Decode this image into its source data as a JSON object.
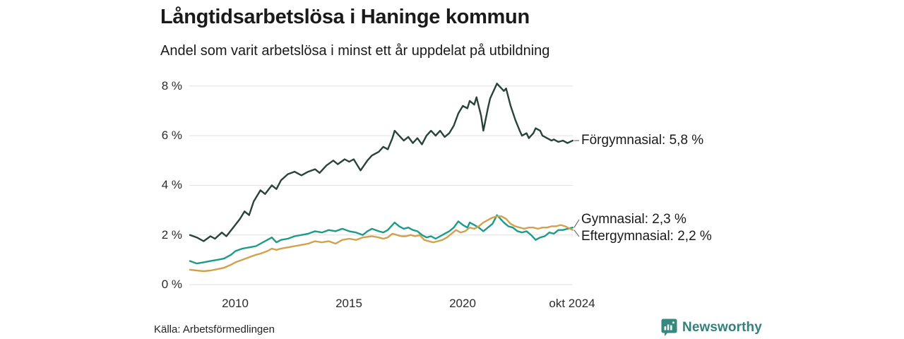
{
  "header": {
    "title": "Långtidsarbetslösa i Haninge kommun",
    "subtitle": "Andel som varit arbetslösa i minst ett år uppdelat på utbildning"
  },
  "footer": {
    "source": "Källa: Arbetsförmedlingen",
    "brand": "Newsworthy",
    "brand_icon": "newsworthy-bar-chart-bubble-icon",
    "brand_color": "#35817a"
  },
  "theme": {
    "background": "#ffffff",
    "grid_color": "#e0e0e0",
    "text_color": "#1a1a1a",
    "leader_line_color": "#555555"
  },
  "chart_data": {
    "type": "line",
    "title": "Långtidsarbetslösa i Haninge kommun",
    "subtitle": "Andel som varit arbetslösa i minst ett år uppdelat på utbildning",
    "unit": "%",
    "grid": true,
    "legend_position": "right-end-labels",
    "x_axis": {
      "range_years": [
        2008.0,
        2024.83
      ],
      "ticks": [
        {
          "year": 2010,
          "label": "2010"
        },
        {
          "year": 2015,
          "label": "2015"
        },
        {
          "year": 2020,
          "label": "2020"
        },
        {
          "year": 2024.79,
          "label": "okt 2024"
        }
      ]
    },
    "y_axis": {
      "range": [
        0,
        8.5
      ],
      "ticks": [
        {
          "value": 0,
          "label": "0 %"
        },
        {
          "value": 2,
          "label": "2 %"
        },
        {
          "value": 4,
          "label": "4 %"
        },
        {
          "value": 6,
          "label": "6 %"
        },
        {
          "value": 8,
          "label": "8 %"
        }
      ]
    },
    "series": [
      {
        "name": "Förgymnasial",
        "label": "Förgymnasial: 5,8 %",
        "final_value": "5,8 %",
        "color": "#28423c",
        "points": [
          [
            2008.0,
            2.0
          ],
          [
            2008.3,
            1.9
          ],
          [
            2008.6,
            1.75
          ],
          [
            2008.9,
            1.95
          ],
          [
            2009.1,
            1.85
          ],
          [
            2009.4,
            2.1
          ],
          [
            2009.6,
            1.95
          ],
          [
            2009.9,
            2.3
          ],
          [
            2010.2,
            2.65
          ],
          [
            2010.4,
            2.95
          ],
          [
            2010.6,
            2.8
          ],
          [
            2010.8,
            3.35
          ],
          [
            2011.1,
            3.8
          ],
          [
            2011.3,
            3.65
          ],
          [
            2011.6,
            4.0
          ],
          [
            2011.8,
            3.85
          ],
          [
            2012.0,
            4.2
          ],
          [
            2012.3,
            4.45
          ],
          [
            2012.6,
            4.55
          ],
          [
            2012.9,
            4.4
          ],
          [
            2013.2,
            4.55
          ],
          [
            2013.5,
            4.65
          ],
          [
            2013.7,
            4.5
          ],
          [
            2014.0,
            4.8
          ],
          [
            2014.3,
            5.0
          ],
          [
            2014.5,
            4.85
          ],
          [
            2014.8,
            5.05
          ],
          [
            2015.0,
            4.95
          ],
          [
            2015.2,
            5.05
          ],
          [
            2015.5,
            4.6
          ],
          [
            2015.8,
            5.0
          ],
          [
            2016.0,
            5.2
          ],
          [
            2016.3,
            5.35
          ],
          [
            2016.5,
            5.55
          ],
          [
            2016.7,
            5.45
          ],
          [
            2016.9,
            5.9
          ],
          [
            2017.0,
            6.2
          ],
          [
            2017.2,
            6.0
          ],
          [
            2017.4,
            5.8
          ],
          [
            2017.6,
            5.95
          ],
          [
            2017.8,
            5.7
          ],
          [
            2018.0,
            5.9
          ],
          [
            2018.2,
            5.65
          ],
          [
            2018.4,
            6.0
          ],
          [
            2018.6,
            6.2
          ],
          [
            2018.8,
            6.0
          ],
          [
            2019.0,
            6.2
          ],
          [
            2019.2,
            5.95
          ],
          [
            2019.4,
            6.1
          ],
          [
            2019.6,
            6.4
          ],
          [
            2019.8,
            6.9
          ],
          [
            2020.0,
            7.2
          ],
          [
            2020.2,
            7.1
          ],
          [
            2020.3,
            7.4
          ],
          [
            2020.5,
            7.25
          ],
          [
            2020.6,
            7.55
          ],
          [
            2020.8,
            6.8
          ],
          [
            2020.9,
            6.2
          ],
          [
            2021.1,
            7.1
          ],
          [
            2021.2,
            7.5
          ],
          [
            2021.4,
            7.9
          ],
          [
            2021.5,
            8.1
          ],
          [
            2021.6,
            8.0
          ],
          [
            2021.8,
            7.8
          ],
          [
            2021.9,
            7.9
          ],
          [
            2022.1,
            7.2
          ],
          [
            2022.3,
            6.65
          ],
          [
            2022.5,
            6.2
          ],
          [
            2022.6,
            6.0
          ],
          [
            2022.8,
            6.1
          ],
          [
            2022.9,
            5.9
          ],
          [
            2023.1,
            6.1
          ],
          [
            2023.2,
            6.3
          ],
          [
            2023.4,
            6.2
          ],
          [
            2023.5,
            6.0
          ],
          [
            2023.7,
            5.9
          ],
          [
            2023.9,
            5.8
          ],
          [
            2024.0,
            5.85
          ],
          [
            2024.2,
            5.75
          ],
          [
            2024.4,
            5.8
          ],
          [
            2024.6,
            5.7
          ],
          [
            2024.83,
            5.8
          ]
        ]
      },
      {
        "name": "Gymnasial",
        "label": "Gymnasial: 2,3 %",
        "final_value": "2,3 %",
        "color": "#1d9b89",
        "points": [
          [
            2008.0,
            0.95
          ],
          [
            2008.3,
            0.85
          ],
          [
            2008.6,
            0.9
          ],
          [
            2008.9,
            0.95
          ],
          [
            2009.2,
            1.0
          ],
          [
            2009.5,
            1.05
          ],
          [
            2009.8,
            1.2
          ],
          [
            2010.0,
            1.35
          ],
          [
            2010.3,
            1.45
          ],
          [
            2010.6,
            1.5
          ],
          [
            2010.9,
            1.55
          ],
          [
            2011.1,
            1.65
          ],
          [
            2011.4,
            1.8
          ],
          [
            2011.6,
            1.9
          ],
          [
            2011.8,
            1.7
          ],
          [
            2012.0,
            1.8
          ],
          [
            2012.3,
            1.85
          ],
          [
            2012.6,
            1.95
          ],
          [
            2012.9,
            2.0
          ],
          [
            2013.2,
            2.05
          ],
          [
            2013.5,
            2.15
          ],
          [
            2013.8,
            2.1
          ],
          [
            2014.1,
            2.2
          ],
          [
            2014.4,
            2.15
          ],
          [
            2014.7,
            2.25
          ],
          [
            2015.0,
            2.15
          ],
          [
            2015.3,
            2.1
          ],
          [
            2015.6,
            2.0
          ],
          [
            2015.8,
            2.15
          ],
          [
            2016.0,
            2.25
          ],
          [
            2016.3,
            2.15
          ],
          [
            2016.5,
            2.1
          ],
          [
            2016.7,
            2.2
          ],
          [
            2016.9,
            2.4
          ],
          [
            2017.0,
            2.5
          ],
          [
            2017.2,
            2.35
          ],
          [
            2017.4,
            2.25
          ],
          [
            2017.6,
            2.3
          ],
          [
            2017.8,
            2.2
          ],
          [
            2018.0,
            2.15
          ],
          [
            2018.2,
            2.0
          ],
          [
            2018.4,
            1.9
          ],
          [
            2018.6,
            1.95
          ],
          [
            2018.8,
            1.85
          ],
          [
            2019.0,
            1.95
          ],
          [
            2019.2,
            2.05
          ],
          [
            2019.4,
            2.15
          ],
          [
            2019.6,
            2.3
          ],
          [
            2019.8,
            2.55
          ],
          [
            2020.0,
            2.4
          ],
          [
            2020.2,
            2.3
          ],
          [
            2020.3,
            2.5
          ],
          [
            2020.5,
            2.4
          ],
          [
            2020.7,
            2.3
          ],
          [
            2020.9,
            2.15
          ],
          [
            2021.1,
            2.3
          ],
          [
            2021.3,
            2.45
          ],
          [
            2021.5,
            2.8
          ],
          [
            2021.6,
            2.7
          ],
          [
            2021.8,
            2.5
          ],
          [
            2022.0,
            2.35
          ],
          [
            2022.2,
            2.3
          ],
          [
            2022.4,
            2.15
          ],
          [
            2022.6,
            2.1
          ],
          [
            2022.8,
            2.15
          ],
          [
            2023.0,
            2.0
          ],
          [
            2023.2,
            1.8
          ],
          [
            2023.4,
            1.9
          ],
          [
            2023.6,
            1.95
          ],
          [
            2023.8,
            2.1
          ],
          [
            2024.0,
            2.05
          ],
          [
            2024.2,
            2.2
          ],
          [
            2024.4,
            2.2
          ],
          [
            2024.6,
            2.25
          ],
          [
            2024.83,
            2.3
          ]
        ]
      },
      {
        "name": "Eftergymnasial",
        "label": "Eftergymnasial: 2,2 %",
        "final_value": "2,2 %",
        "color": "#d1a14b",
        "points": [
          [
            2008.0,
            0.6
          ],
          [
            2008.3,
            0.57
          ],
          [
            2008.6,
            0.54
          ],
          [
            2008.9,
            0.57
          ],
          [
            2009.2,
            0.62
          ],
          [
            2009.5,
            0.68
          ],
          [
            2009.8,
            0.8
          ],
          [
            2010.0,
            0.9
          ],
          [
            2010.3,
            1.0
          ],
          [
            2010.6,
            1.1
          ],
          [
            2010.9,
            1.2
          ],
          [
            2011.1,
            1.25
          ],
          [
            2011.4,
            1.35
          ],
          [
            2011.6,
            1.45
          ],
          [
            2011.8,
            1.4
          ],
          [
            2012.0,
            1.45
          ],
          [
            2012.3,
            1.5
          ],
          [
            2012.6,
            1.55
          ],
          [
            2012.9,
            1.6
          ],
          [
            2013.2,
            1.65
          ],
          [
            2013.5,
            1.75
          ],
          [
            2013.8,
            1.7
          ],
          [
            2014.1,
            1.75
          ],
          [
            2014.4,
            1.65
          ],
          [
            2014.7,
            1.8
          ],
          [
            2015.0,
            1.85
          ],
          [
            2015.3,
            1.8
          ],
          [
            2015.6,
            1.9
          ],
          [
            2016.0,
            1.95
          ],
          [
            2016.3,
            1.9
          ],
          [
            2016.5,
            1.85
          ],
          [
            2016.7,
            1.9
          ],
          [
            2016.9,
            2.05
          ],
          [
            2017.1,
            2.0
          ],
          [
            2017.3,
            1.95
          ],
          [
            2017.5,
            1.95
          ],
          [
            2017.7,
            2.0
          ],
          [
            2017.9,
            1.95
          ],
          [
            2018.1,
            2.0
          ],
          [
            2018.3,
            1.8
          ],
          [
            2018.5,
            1.75
          ],
          [
            2018.7,
            1.7
          ],
          [
            2018.9,
            1.75
          ],
          [
            2019.1,
            1.8
          ],
          [
            2019.3,
            1.9
          ],
          [
            2019.5,
            2.05
          ],
          [
            2019.7,
            2.2
          ],
          [
            2019.9,
            2.1
          ],
          [
            2020.1,
            2.15
          ],
          [
            2020.3,
            2.3
          ],
          [
            2020.5,
            2.25
          ],
          [
            2020.7,
            2.35
          ],
          [
            2020.9,
            2.5
          ],
          [
            2021.1,
            2.6
          ],
          [
            2021.3,
            2.7
          ],
          [
            2021.5,
            2.75
          ],
          [
            2021.7,
            2.75
          ],
          [
            2021.9,
            2.65
          ],
          [
            2022.1,
            2.45
          ],
          [
            2022.3,
            2.35
          ],
          [
            2022.5,
            2.3
          ],
          [
            2022.7,
            2.25
          ],
          [
            2022.9,
            2.3
          ],
          [
            2023.1,
            2.3
          ],
          [
            2023.3,
            2.25
          ],
          [
            2023.5,
            2.3
          ],
          [
            2023.7,
            2.3
          ],
          [
            2023.9,
            2.35
          ],
          [
            2024.1,
            2.35
          ],
          [
            2024.3,
            2.4
          ],
          [
            2024.5,
            2.35
          ],
          [
            2024.83,
            2.2
          ]
        ]
      }
    ],
    "source": "Källa: Arbetsförmedlingen"
  }
}
